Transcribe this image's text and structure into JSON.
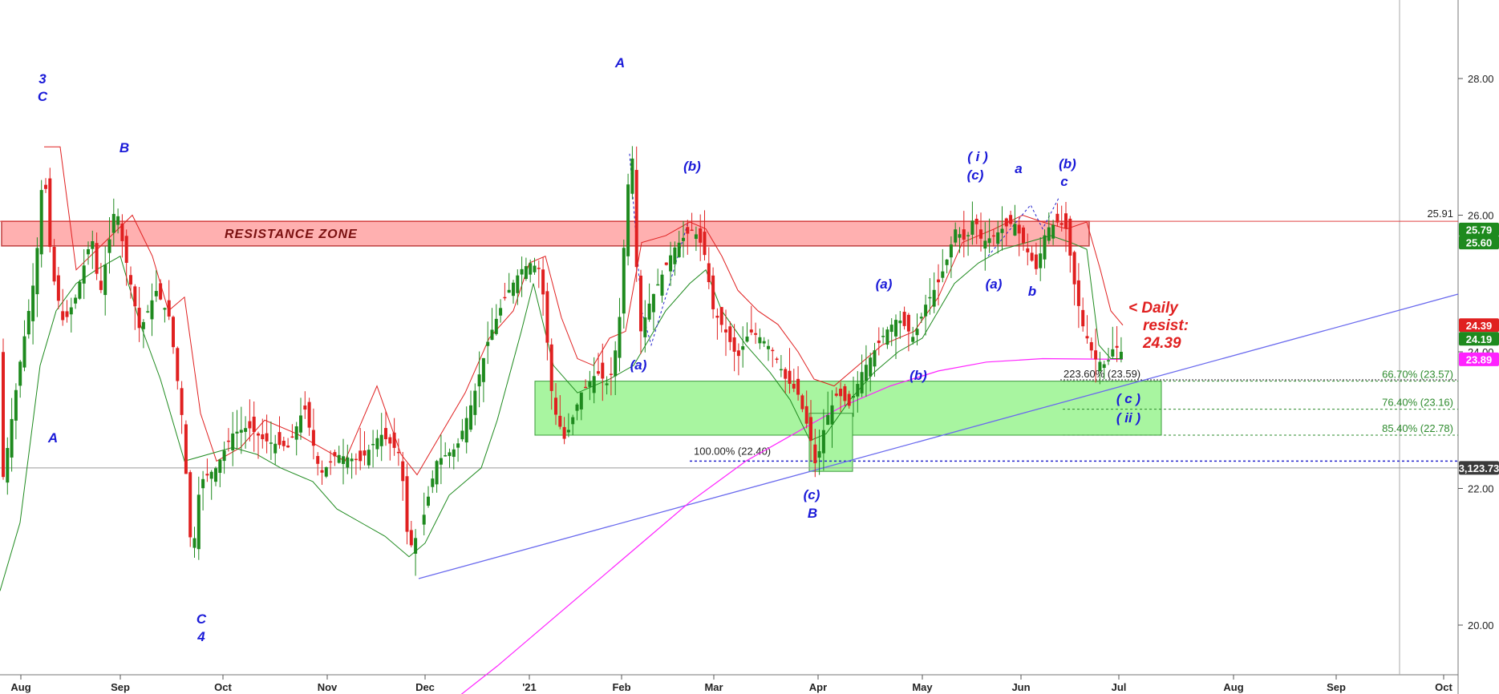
{
  "chart_data": {
    "type": "candlestick",
    "y_axis": {
      "range": [
        18.8,
        29.9
      ],
      "ticks": [
        "20.00",
        "22.00",
        "24.00",
        "26.00",
        "28.00"
      ],
      "tick_values": [
        20,
        22,
        24,
        26,
        28
      ]
    },
    "x_axis": {
      "months": [
        "Aug",
        "Sep",
        "Oct",
        "Nov",
        "Dec",
        "'21",
        "Feb",
        "Mar",
        "Apr",
        "May",
        "Jun",
        "Jul",
        "Aug",
        "Sep",
        "Oct"
      ]
    },
    "resistance_zone": {
      "label": "RESISTANCE ZONE",
      "low": 25.55,
      "high": 25.91
    },
    "support_zone": {
      "low": 22.78,
      "high": 23.57
    },
    "horizontal_line": {
      "value": 25.91,
      "label": "25.91"
    },
    "index_level": {
      "value": 22.3,
      "label": "3,123.73"
    },
    "fib_levels": [
      {
        "label": "66.70% (23.57)",
        "value": 23.57
      },
      {
        "label": "76.40% (23.16)",
        "value": 23.16
      },
      {
        "label": "85.40% (22.78)",
        "value": 22.78
      },
      {
        "label": "100.00% (22.40)",
        "value": 22.4
      },
      {
        "label": "223.60% (23.59)",
        "value": 23.59
      }
    ],
    "price_badges": [
      {
        "label": "25.79",
        "value": 25.79,
        "color": "#1e8a1e"
      },
      {
        "label": "25.60",
        "value": 25.6,
        "color": "#1e8a1e"
      },
      {
        "label": "24.39",
        "value": 24.39,
        "color": "#e02020"
      },
      {
        "label": "24.19",
        "value": 24.19,
        "color": "#1e8a1e"
      },
      {
        "label": "23.89",
        "value": 23.89,
        "color": "#ff22ff"
      },
      {
        "label": "3,123.73",
        "value": 22.3,
        "color": "#3a3a3a"
      }
    ],
    "annotation": {
      "lines": [
        "<  Daily",
        "resist:",
        "24.39"
      ]
    },
    "wave_labels": [
      "3",
      "C",
      "B",
      "A",
      "C",
      "4",
      "A",
      "(b)",
      "(a)",
      "(c)",
      "B",
      "(a)",
      "(b)",
      "( i )",
      "(c)",
      "a",
      "(a)",
      "b",
      "(b)",
      "c",
      "( c )",
      "( ii )"
    ],
    "colors": {
      "up": "#1e8a1e",
      "down": "#e02020",
      "ma_slow": "#ff22ff",
      "trendline": "#6a6aee",
      "wave_labels": "#1a1ad8",
      "zone_red": "#ffb0b0",
      "zone_green": "#a8f5a0"
    }
  }
}
